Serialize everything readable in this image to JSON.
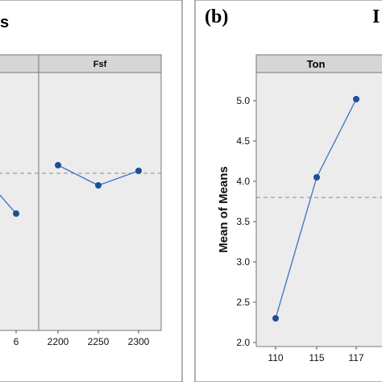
{
  "figure": {
    "panel_b_label": "(b)",
    "left_title_fragment": "s",
    "right_edge_fragment": "I"
  },
  "colors": {
    "line": "#3a73c4",
    "point": "#1f4e9a",
    "panel_bg": "#ececec",
    "strip_bg": "#d6d6d6",
    "mean_line": "#8a8a8a"
  },
  "chart_data": [
    {
      "type": "line",
      "strip_labels": [
        "",
        "Fsf"
      ],
      "grand_mean": 3.95,
      "ylim": [
        2.0,
        5.2
      ],
      "facets": [
        {
          "name": "",
          "x": [
            "6"
          ],
          "values": [
            3.45
          ],
          "partial_line_start": 3.7
        },
        {
          "name": "Fsf",
          "x": [
            "2200",
            "2250",
            "2300"
          ],
          "values": [
            4.05,
            3.8,
            3.98
          ]
        }
      ],
      "xtick_labels": [
        "6",
        "2200",
        "2250",
        "2300"
      ]
    },
    {
      "type": "line",
      "strip_label": "Ton",
      "ylabel": "Mean of Means",
      "x": [
        "110",
        "115",
        "117"
      ],
      "values": [
        2.3,
        4.05,
        5.02
      ],
      "grand_mean": 3.8,
      "ylim": [
        1.95,
        5.35
      ],
      "yticks": [
        "2.0",
        "2.5",
        "3.0",
        "3.5",
        "4.0",
        "4.5",
        "5.0"
      ],
      "grid": false
    }
  ]
}
